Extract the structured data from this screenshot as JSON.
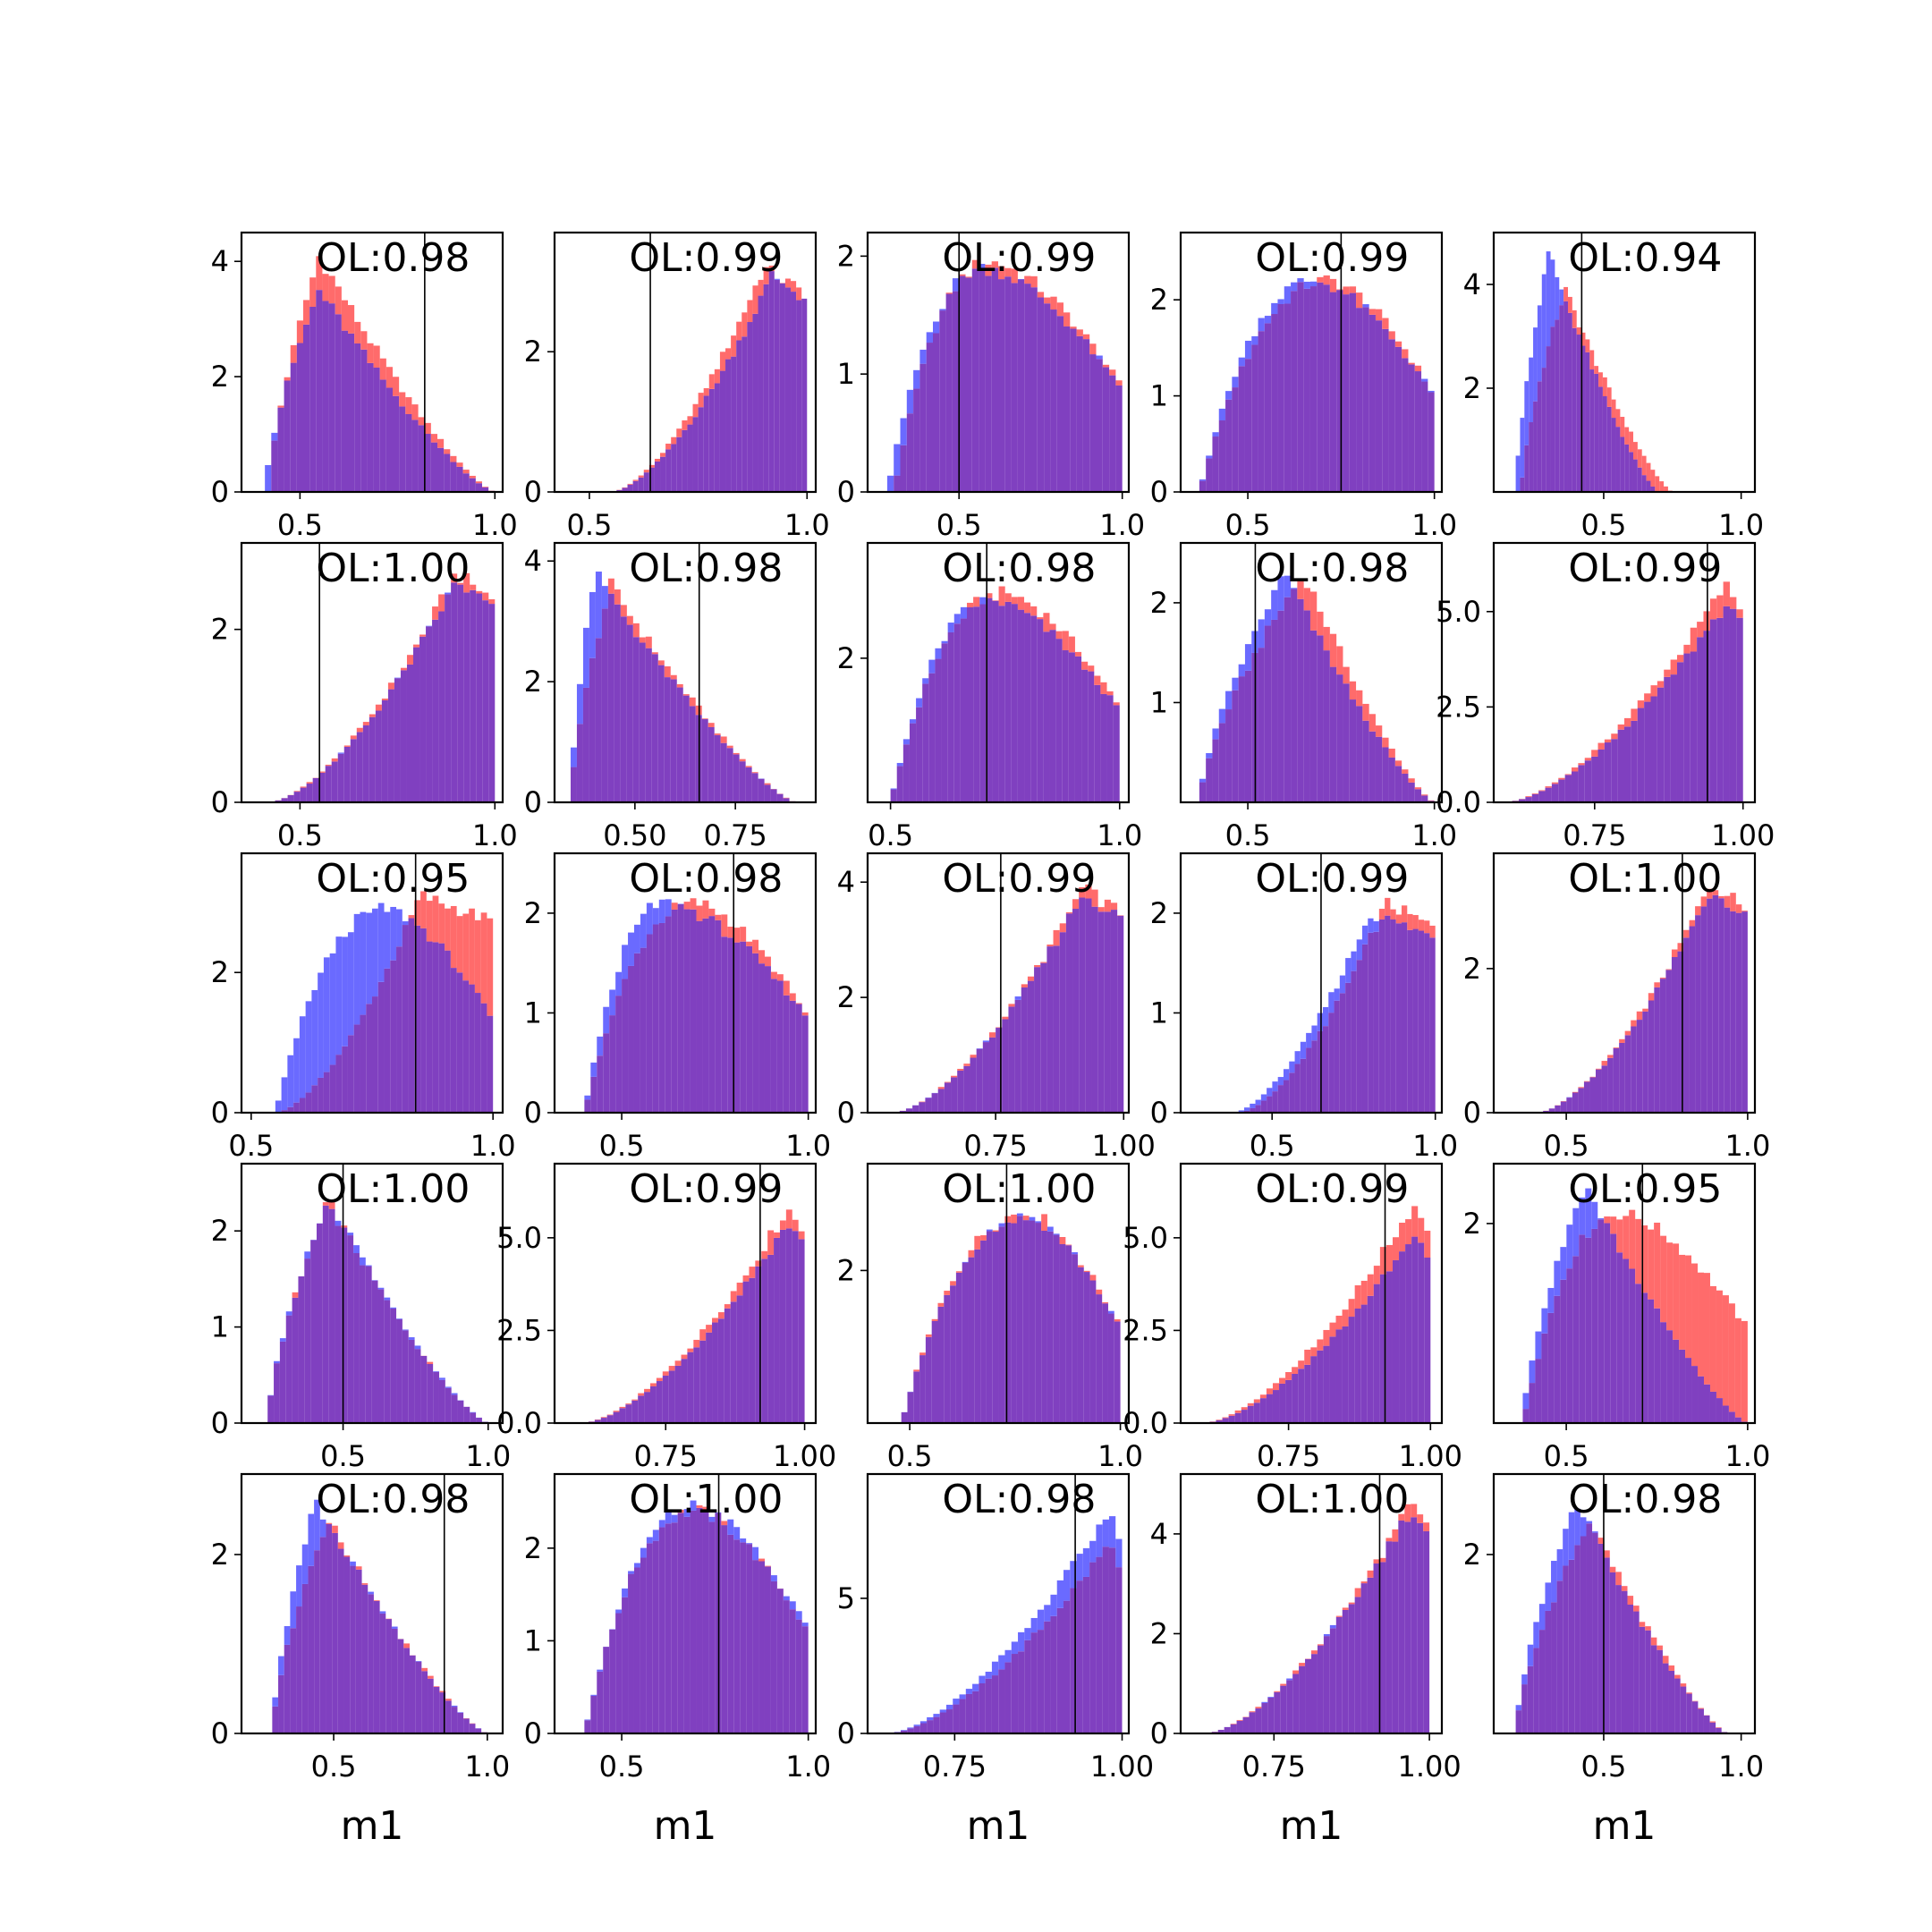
{
  "figure": {
    "xlabel": "m1",
    "colors": {
      "red": "#ff6b6b",
      "blue": "#6a6aff",
      "overlap": "#8040c0",
      "line": "#000000"
    }
  },
  "chart_data": [
    {
      "type": "bar",
      "annotation": "OL:0.98",
      "xlim": [
        0.35,
        1.02
      ],
      "xticks": [
        "0.5",
        "1.0"
      ],
      "xtick_values": [
        0.5,
        1.0
      ],
      "ylim": [
        0,
        4.5
      ],
      "yticks": [
        "0",
        "2",
        "4"
      ],
      "ytick_values": [
        0,
        2,
        4
      ],
      "vline": 0.82,
      "series": [
        {
          "shape": "skew",
          "mode": 0.55,
          "lo": 0.42,
          "hi": 1.0,
          "peak": 4.1
        },
        {
          "shape": "skew",
          "mode": 0.55,
          "lo": 0.41,
          "hi": 1.0,
          "peak": 3.5
        }
      ]
    },
    {
      "type": "bar",
      "annotation": "OL:0.99",
      "xlim": [
        0.42,
        1.02
      ],
      "xticks": [
        "0.5",
        "1.0"
      ],
      "xtick_values": [
        0.5,
        1.0
      ],
      "ylim": [
        0,
        3.7
      ],
      "yticks": [
        "0",
        "2"
      ],
      "ytick_values": [
        0,
        2
      ],
      "vline": 0.64,
      "series": [
        {
          "shape": "rise",
          "mode": 0.9,
          "lo": 0.55,
          "hi": 1.0,
          "peak": 3.2
        },
        {
          "shape": "rise",
          "mode": 0.92,
          "lo": 0.55,
          "hi": 1.0,
          "peak": 3.1
        }
      ]
    },
    {
      "type": "bar",
      "annotation": "OL:0.99",
      "xlim": [
        0.22,
        1.02
      ],
      "xticks": [
        "0.5",
        "1.0"
      ],
      "xtick_values": [
        0.5,
        1.0
      ],
      "ylim": [
        0,
        2.2
      ],
      "yticks": [
        "0",
        "1",
        "2"
      ],
      "ytick_values": [
        0,
        1,
        2
      ],
      "vline": 0.5,
      "series": [
        {
          "shape": "dome",
          "mode": 0.6,
          "lo": 0.3,
          "hi": 1.0,
          "peak": 1.95
        },
        {
          "shape": "dome",
          "mode": 0.58,
          "lo": 0.28,
          "hi": 1.0,
          "peak": 1.9
        }
      ]
    },
    {
      "type": "bar",
      "annotation": "OL:0.99",
      "xlim": [
        0.32,
        1.02
      ],
      "xticks": [
        "0.5",
        "1.0"
      ],
      "xtick_values": [
        0.5,
        1.0
      ],
      "ylim": [
        0,
        2.7
      ],
      "yticks": [
        "0",
        "1",
        "2"
      ],
      "ytick_values": [
        0,
        1,
        2
      ],
      "vline": 0.75,
      "series": [
        {
          "shape": "dome",
          "mode": 0.72,
          "lo": 0.37,
          "hi": 1.0,
          "peak": 2.2
        },
        {
          "shape": "dome",
          "mode": 0.68,
          "lo": 0.37,
          "hi": 1.0,
          "peak": 2.2
        }
      ]
    },
    {
      "type": "bar",
      "annotation": "OL:0.94",
      "xlim": [
        0.1,
        1.05
      ],
      "xticks": [
        "0.5",
        "1.0"
      ],
      "xtick_values": [
        0.5,
        1.0
      ],
      "ylim": [
        0,
        5.0
      ],
      "yticks": [
        "2",
        "4"
      ],
      "ytick_values": [
        2,
        4
      ],
      "vline": 0.42,
      "series": [
        {
          "shape": "skew",
          "mode": 0.36,
          "lo": 0.2,
          "hi": 0.75,
          "peak": 3.9
        },
        {
          "shape": "skew",
          "mode": 0.3,
          "lo": 0.18,
          "hi": 0.7,
          "peak": 4.6
        }
      ]
    },
    {
      "type": "bar",
      "annotation": "OL:1.00",
      "xlim": [
        0.35,
        1.02
      ],
      "xticks": [
        "0.5",
        "1.0"
      ],
      "xtick_values": [
        0.5,
        1.0
      ],
      "ylim": [
        0,
        3.0
      ],
      "yticks": [
        "0",
        "2"
      ],
      "ytick_values": [
        0,
        2
      ],
      "vline": 0.55,
      "series": [
        {
          "shape": "rise",
          "mode": 0.9,
          "lo": 0.42,
          "hi": 1.0,
          "peak": 2.65
        },
        {
          "shape": "rise",
          "mode": 0.9,
          "lo": 0.42,
          "hi": 1.0,
          "peak": 2.55
        }
      ]
    },
    {
      "type": "bar",
      "annotation": "OL:0.98",
      "xlim": [
        0.3,
        0.95
      ],
      "xticks": [
        "0.50",
        "0.75"
      ],
      "xtick_values": [
        0.5,
        0.75
      ],
      "ylim": [
        0,
        4.3
      ],
      "yticks": [
        "0",
        "2",
        "4"
      ],
      "ytick_values": [
        0,
        2,
        4
      ],
      "vline": 0.66,
      "series": [
        {
          "shape": "skew",
          "mode": 0.44,
          "lo": 0.34,
          "hi": 0.9,
          "peak": 3.6
        },
        {
          "shape": "skew",
          "mode": 0.4,
          "lo": 0.34,
          "hi": 0.9,
          "peak": 3.8
        }
      ]
    },
    {
      "type": "bar",
      "annotation": "OL:0.98",
      "xlim": [
        0.45,
        1.02
      ],
      "xticks": [
        "0.5",
        "1.0"
      ],
      "xtick_values": [
        0.5,
        1.0
      ],
      "ylim": [
        0,
        3.6
      ],
      "yticks": [
        "2"
      ],
      "ytick_values": [
        2
      ],
      "vline": 0.71,
      "series": [
        {
          "shape": "dome",
          "mode": 0.75,
          "lo": 0.5,
          "hi": 1.0,
          "peak": 2.9
        },
        {
          "shape": "dome",
          "mode": 0.72,
          "lo": 0.5,
          "hi": 1.0,
          "peak": 2.8
        }
      ]
    },
    {
      "type": "bar",
      "annotation": "OL:0.98",
      "xlim": [
        0.32,
        1.02
      ],
      "xticks": [
        "0.5",
        "1.0"
      ],
      "xtick_values": [
        0.5,
        1.0
      ],
      "ylim": [
        0,
        2.6
      ],
      "yticks": [
        "1",
        "2"
      ],
      "ytick_values": [
        1,
        2
      ],
      "vline": 0.52,
      "series": [
        {
          "shape": "skew",
          "mode": 0.65,
          "lo": 0.37,
          "hi": 1.0,
          "peak": 2.3
        },
        {
          "shape": "skew",
          "mode": 0.6,
          "lo": 0.37,
          "hi": 1.0,
          "peak": 2.3
        }
      ]
    },
    {
      "type": "bar",
      "annotation": "OL:0.99",
      "xlim": [
        0.58,
        1.02
      ],
      "xticks": [
        "0.75",
        "1.00"
      ],
      "xtick_values": [
        0.75,
        1.0
      ],
      "ylim": [
        0,
        6.8
      ],
      "yticks": [
        "0.0",
        "2.5",
        "5.0"
      ],
      "ytick_values": [
        0,
        2.5,
        5.0
      ],
      "vline": 0.94,
      "series": [
        {
          "shape": "rise",
          "mode": 0.97,
          "lo": 0.6,
          "hi": 1.0,
          "peak": 5.7
        },
        {
          "shape": "rise",
          "mode": 0.97,
          "lo": 0.6,
          "hi": 1.0,
          "peak": 5.2
        }
      ]
    },
    {
      "type": "bar",
      "annotation": "OL:0.95",
      "xlim": [
        0.48,
        1.02
      ],
      "xticks": [
        "0.5",
        "1.0"
      ],
      "xtick_values": [
        0.5,
        1.0
      ],
      "ylim": [
        0,
        3.7
      ],
      "yticks": [
        "0",
        "2"
      ],
      "ytick_values": [
        0,
        2
      ],
      "vline": 0.84,
      "series": [
        {
          "shape": "rise",
          "mode": 0.85,
          "lo": 0.55,
          "hi": 1.0,
          "peak": 3.1
        },
        {
          "shape": "dome",
          "mode": 0.78,
          "lo": 0.55,
          "hi": 1.0,
          "peak": 2.9
        }
      ]
    },
    {
      "type": "bar",
      "annotation": "OL:0.98",
      "xlim": [
        0.32,
        1.02
      ],
      "xticks": [
        "0.5",
        "1.0"
      ],
      "xtick_values": [
        0.5,
        1.0
      ],
      "ylim": [
        0,
        2.6
      ],
      "yticks": [
        "0",
        "1",
        "2"
      ],
      "ytick_values": [
        0,
        1,
        2
      ],
      "vline": 0.8,
      "series": [
        {
          "shape": "dome",
          "mode": 0.7,
          "lo": 0.4,
          "hi": 1.0,
          "peak": 2.1
        },
        {
          "shape": "dome",
          "mode": 0.62,
          "lo": 0.4,
          "hi": 1.0,
          "peak": 2.1
        }
      ]
    },
    {
      "type": "bar",
      "annotation": "OL:0.99",
      "xlim": [
        0.5,
        1.01
      ],
      "xticks": [
        "0.75",
        "1.00"
      ],
      "xtick_values": [
        0.75,
        1.0
      ],
      "ylim": [
        0,
        4.5
      ],
      "yticks": [
        "0",
        "2",
        "4"
      ],
      "ytick_values": [
        0,
        2,
        4
      ],
      "vline": 0.76,
      "series": [
        {
          "shape": "rise",
          "mode": 0.92,
          "lo": 0.55,
          "hi": 1.0,
          "peak": 3.9
        },
        {
          "shape": "rise",
          "mode": 0.92,
          "lo": 0.55,
          "hi": 1.0,
          "peak": 3.8
        }
      ]
    },
    {
      "type": "bar",
      "annotation": "OL:0.99",
      "xlim": [
        0.22,
        1.02
      ],
      "xticks": [
        "0.5",
        "1.0"
      ],
      "xtick_values": [
        0.5,
        1.0
      ],
      "ylim": [
        0,
        2.6
      ],
      "yticks": [
        "0",
        "1",
        "2"
      ],
      "ytick_values": [
        0,
        1,
        2
      ],
      "vline": 0.65,
      "series": [
        {
          "shape": "rise",
          "mode": 0.85,
          "lo": 0.4,
          "hi": 1.0,
          "peak": 2.1
        },
        {
          "shape": "rise",
          "mode": 0.8,
          "lo": 0.38,
          "hi": 1.0,
          "peak": 2.0
        }
      ]
    },
    {
      "type": "bar",
      "annotation": "OL:1.00",
      "xlim": [
        0.3,
        1.02
      ],
      "xticks": [
        "0.5",
        "1.0"
      ],
      "xtick_values": [
        0.5,
        1.0
      ],
      "ylim": [
        0,
        3.6
      ],
      "yticks": [
        "0",
        "2"
      ],
      "ytick_values": [
        0,
        2
      ],
      "vline": 0.82,
      "series": [
        {
          "shape": "rise",
          "mode": 0.9,
          "lo": 0.42,
          "hi": 1.0,
          "peak": 3.2
        },
        {
          "shape": "rise",
          "mode": 0.9,
          "lo": 0.42,
          "hi": 1.0,
          "peak": 3.1
        }
      ]
    },
    {
      "type": "bar",
      "annotation": "OL:1.00",
      "xlim": [
        0.15,
        1.05
      ],
      "xticks": [
        "0.5",
        "1.0"
      ],
      "xtick_values": [
        0.5,
        1.0
      ],
      "ylim": [
        0,
        2.7
      ],
      "yticks": [
        "0",
        "1",
        "2"
      ],
      "ytick_values": [
        0,
        1,
        2
      ],
      "vline": 0.5,
      "series": [
        {
          "shape": "skew",
          "mode": 0.45,
          "lo": 0.24,
          "hi": 1.0,
          "peak": 2.3
        },
        {
          "shape": "skew",
          "mode": 0.45,
          "lo": 0.24,
          "hi": 1.0,
          "peak": 2.35
        }
      ]
    },
    {
      "type": "bar",
      "annotation": "OL:0.99",
      "xlim": [
        0.55,
        1.02
      ],
      "xticks": [
        "0.75",
        "1.00"
      ],
      "xtick_values": [
        0.75,
        1.0
      ],
      "ylim": [
        0,
        7.0
      ],
      "yticks": [
        "0.0",
        "2.5",
        "5.0"
      ],
      "ytick_values": [
        0,
        2.5,
        5.0
      ],
      "vline": 0.92,
      "series": [
        {
          "shape": "rise",
          "mode": 0.97,
          "lo": 0.6,
          "hi": 1.0,
          "peak": 5.8
        },
        {
          "shape": "rise",
          "mode": 0.97,
          "lo": 0.6,
          "hi": 1.0,
          "peak": 5.4
        }
      ]
    },
    {
      "type": "bar",
      "annotation": "OL:1.00",
      "xlim": [
        0.4,
        1.02
      ],
      "xticks": [
        "0.5",
        "1.0"
      ],
      "xtick_values": [
        0.5,
        1.0
      ],
      "ylim": [
        0,
        3.4
      ],
      "yticks": [
        "2"
      ],
      "ytick_values": [
        2
      ],
      "vline": 0.73,
      "series": [
        {
          "shape": "dome",
          "mode": 0.78,
          "lo": 0.48,
          "hi": 1.0,
          "peak": 2.75
        },
        {
          "shape": "dome",
          "mode": 0.78,
          "lo": 0.48,
          "hi": 1.0,
          "peak": 2.7
        }
      ]
    },
    {
      "type": "bar",
      "annotation": "OL:0.99",
      "xlim": [
        0.56,
        1.02
      ],
      "xticks": [
        "0.75",
        "1.00"
      ],
      "xtick_values": [
        0.75,
        1.0
      ],
      "ylim": [
        0,
        7.0
      ],
      "yticks": [
        "0.0",
        "2.5",
        "5.0"
      ],
      "ytick_values": [
        0,
        2.5,
        5.0
      ],
      "vline": 0.92,
      "series": [
        {
          "shape": "rise",
          "mode": 0.97,
          "lo": 0.6,
          "hi": 1.0,
          "peak": 5.9
        },
        {
          "shape": "rise",
          "mode": 0.97,
          "lo": 0.6,
          "hi": 1.0,
          "peak": 5.0
        }
      ]
    },
    {
      "type": "bar",
      "annotation": "OL:0.95",
      "xlim": [
        0.3,
        1.02
      ],
      "xticks": [
        "0.5",
        "1.0"
      ],
      "xtick_values": [
        0.5,
        1.0
      ],
      "ylim": [
        0,
        2.6
      ],
      "yticks": [
        "2"
      ],
      "ytick_values": [
        2
      ],
      "vline": 0.71,
      "series": [
        {
          "shape": "dome",
          "mode": 0.65,
          "lo": 0.38,
          "hi": 1.0,
          "peak": 2.1
        },
        {
          "shape": "skew",
          "mode": 0.55,
          "lo": 0.38,
          "hi": 1.0,
          "peak": 2.4
        }
      ]
    },
    {
      "type": "bar",
      "annotation": "OL:0.98",
      "xlim": [
        0.2,
        1.05
      ],
      "xticks": [
        "0.5",
        "1.0"
      ],
      "xtick_values": [
        0.5,
        1.0
      ],
      "ylim": [
        0,
        2.9
      ],
      "yticks": [
        "0",
        "2"
      ],
      "ytick_values": [
        0,
        2
      ],
      "vline": 0.86,
      "series": [
        {
          "shape": "skew",
          "mode": 0.48,
          "lo": 0.3,
          "hi": 1.0,
          "peak": 2.4
        },
        {
          "shape": "skew",
          "mode": 0.44,
          "lo": 0.3,
          "hi": 1.0,
          "peak": 2.6
        }
      ]
    },
    {
      "type": "bar",
      "annotation": "OL:1.00",
      "xlim": [
        0.32,
        1.02
      ],
      "xticks": [
        "0.5",
        "1.0"
      ],
      "xtick_values": [
        0.5,
        1.0
      ],
      "ylim": [
        0,
        2.8
      ],
      "yticks": [
        "0",
        "1",
        "2"
      ],
      "ytick_values": [
        0,
        1,
        2
      ],
      "vline": 0.76,
      "series": [
        {
          "shape": "dome",
          "mode": 0.7,
          "lo": 0.4,
          "hi": 1.0,
          "peak": 2.4
        },
        {
          "shape": "dome",
          "mode": 0.7,
          "lo": 0.4,
          "hi": 1.0,
          "peak": 2.45
        }
      ]
    },
    {
      "type": "bar",
      "annotation": "OL:0.98",
      "xlim": [
        0.62,
        1.01
      ],
      "xticks": [
        "0.75",
        "1.00"
      ],
      "xtick_values": [
        0.75,
        1.0
      ],
      "ylim": [
        0,
        9.6
      ],
      "yticks": [
        "0",
        "5"
      ],
      "ytick_values": [
        0,
        5
      ],
      "vline": 0.93,
      "series": [
        {
          "shape": "rise",
          "mode": 0.98,
          "lo": 0.65,
          "hi": 1.0,
          "peak": 7.0
        },
        {
          "shape": "rise",
          "mode": 0.98,
          "lo": 0.65,
          "hi": 1.0,
          "peak": 8.2
        }
      ]
    },
    {
      "type": "bar",
      "annotation": "OL:1.00",
      "xlim": [
        0.6,
        1.02
      ],
      "xticks": [
        "0.75",
        "1.00"
      ],
      "xtick_values": [
        0.75,
        1.0
      ],
      "ylim": [
        0,
        5.2
      ],
      "yticks": [
        "0",
        "2",
        "4"
      ],
      "ytick_values": [
        0,
        2,
        4
      ],
      "vline": 0.92,
      "series": [
        {
          "shape": "rise",
          "mode": 0.97,
          "lo": 0.64,
          "hi": 1.0,
          "peak": 4.6
        },
        {
          "shape": "rise",
          "mode": 0.97,
          "lo": 0.64,
          "hi": 1.0,
          "peak": 4.5
        }
      ]
    },
    {
      "type": "bar",
      "annotation": "OL:0.98",
      "xlim": [
        0.1,
        1.05
      ],
      "xticks": [
        "0.5",
        "1.0"
      ],
      "xtick_values": [
        0.5,
        1.0
      ],
      "ylim": [
        0,
        2.9
      ],
      "yticks": [
        "2"
      ],
      "ytick_values": [
        2
      ],
      "vline": 0.5,
      "series": [
        {
          "shape": "skew",
          "mode": 0.45,
          "lo": 0.18,
          "hi": 0.95,
          "peak": 2.4
        },
        {
          "shape": "skew",
          "mode": 0.4,
          "lo": 0.18,
          "hi": 0.95,
          "peak": 2.6
        }
      ]
    }
  ]
}
